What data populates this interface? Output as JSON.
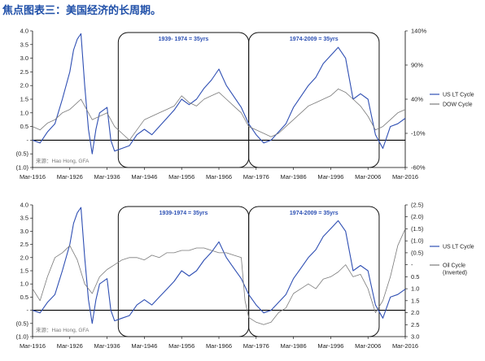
{
  "title": "焦点图表三：美国经济的长周期。",
  "chart_data": [
    {
      "type": "line",
      "x": [
        "Mar-1916",
        "Mar-1926",
        "Mar-1936",
        "Mar-1946",
        "Mar-1956",
        "Mar-1966",
        "Mar-1976",
        "Mar-1986",
        "Mar-1996",
        "Mar-2006",
        "Mar-2016"
      ],
      "y_left_ticks": [
        "4.0",
        "3.5",
        "3.0",
        "2.5",
        "2.0",
        "1.5",
        "1.0",
        "0.5",
        "-",
        "(0.5)",
        "(1.0)"
      ],
      "y_right_ticks": [
        "140%",
        "90%",
        "40%",
        "-10%",
        "-60%"
      ],
      "ylim_left": [
        -1.0,
        4.0
      ],
      "ylim_right": [
        -60,
        140
      ],
      "periods": [
        {
          "label": "1939- 1974 = 35yrs",
          "x_range": [
            1939,
            1974
          ]
        },
        {
          "label": "1974-2009 = 35yrs",
          "x_range": [
            1974,
            2009
          ]
        }
      ],
      "series": [
        {
          "name": "US LT Cycle",
          "color": "#2f4fb3",
          "axis": "left",
          "x": [
            1916,
            1918,
            1920,
            1922,
            1924,
            1926,
            1927,
            1928,
            1929,
            1930,
            1931,
            1932,
            1933,
            1934,
            1936,
            1937,
            1938,
            1940,
            1942,
            1944,
            1946,
            1948,
            1950,
            1952,
            1954,
            1956,
            1958,
            1960,
            1962,
            1964,
            1966,
            1968,
            1970,
            1972,
            1974,
            1976,
            1978,
            1980,
            1982,
            1984,
            1986,
            1988,
            1990,
            1992,
            1994,
            1996,
            1998,
            2000,
            2002,
            2004,
            2006,
            2008,
            2010,
            2012,
            2014,
            2016
          ],
          "values": [
            0.0,
            -0.1,
            0.3,
            0.6,
            1.5,
            2.5,
            3.3,
            3.7,
            3.9,
            2.0,
            0.4,
            -0.5,
            0.4,
            1.0,
            1.2,
            0.0,
            -0.4,
            -0.3,
            -0.2,
            0.2,
            0.4,
            0.2,
            0.5,
            0.8,
            1.1,
            1.5,
            1.3,
            1.5,
            1.9,
            2.2,
            2.6,
            2.0,
            1.6,
            1.2,
            0.6,
            0.2,
            -0.1,
            0.0,
            0.3,
            0.6,
            1.2,
            1.6,
            2.0,
            2.3,
            2.8,
            3.1,
            3.4,
            3.0,
            1.5,
            1.7,
            1.5,
            0.2,
            -0.3,
            0.5,
            0.6,
            0.8
          ]
        },
        {
          "name": "DOW Cycle",
          "color": "#7a7a7a",
          "axis": "right",
          "x": [
            1916,
            1918,
            1920,
            1922,
            1924,
            1926,
            1928,
            1929,
            1930,
            1932,
            1934,
            1936,
            1937,
            1938,
            1940,
            1942,
            1944,
            1946,
            1948,
            1950,
            1952,
            1954,
            1956,
            1958,
            1960,
            1962,
            1964,
            1966,
            1968,
            1970,
            1972,
            1974,
            1976,
            1978,
            1980,
            1982,
            1984,
            1986,
            1988,
            1990,
            1992,
            1994,
            1996,
            1998,
            2000,
            2002,
            2004,
            2006,
            2008,
            2010,
            2012,
            2014,
            2016
          ],
          "values": [
            0,
            -5,
            5,
            10,
            20,
            25,
            35,
            40,
            30,
            10,
            15,
            20,
            10,
            0,
            -10,
            -20,
            -5,
            10,
            15,
            20,
            25,
            30,
            45,
            35,
            30,
            40,
            45,
            50,
            40,
            30,
            20,
            0,
            -5,
            -10,
            -15,
            -10,
            0,
            10,
            20,
            30,
            35,
            40,
            45,
            55,
            50,
            40,
            30,
            15,
            -5,
            0,
            10,
            20,
            25
          ]
        }
      ],
      "watermark": "来源：Hao Hong, GFA"
    },
    {
      "type": "line",
      "x": [
        "Mar-1916",
        "Mar-1926",
        "Mar-1936",
        "Mar-1946",
        "Mar-1956",
        "Mar-1966",
        "Mar-1976",
        "Mar-1986",
        "Mar-1996",
        "Mar-2006",
        "Mar-2016"
      ],
      "y_left_ticks": [
        "4.0",
        "3.5",
        "3.0",
        "2.5",
        "2.0",
        "1.5",
        "1.0",
        "0.5",
        "-",
        "(0.5)",
        "(1.0)"
      ],
      "y_right_ticks": [
        "(2.5)",
        "(2.0)",
        "(1.5)",
        "(1.0)",
        "(0.5)",
        "-",
        "0.5",
        "1.0",
        "1.5",
        "2.0",
        "2.5",
        "3.0"
      ],
      "ylim_left": [
        -1.0,
        4.0
      ],
      "ylim_right": [
        3.0,
        -2.5
      ],
      "periods": [
        {
          "label": "1939-1974 = 35yrs",
          "x_range": [
            1939,
            1974
          ]
        },
        {
          "label": "1974-2009 = 35yrs",
          "x_range": [
            1974,
            2009
          ]
        }
      ],
      "series": [
        {
          "name": "US LT Cycle",
          "color": "#2f4fb3",
          "axis": "left",
          "x": [
            1916,
            1918,
            1920,
            1922,
            1924,
            1926,
            1927,
            1928,
            1929,
            1930,
            1931,
            1932,
            1933,
            1934,
            1936,
            1937,
            1938,
            1940,
            1942,
            1944,
            1946,
            1948,
            1950,
            1952,
            1954,
            1956,
            1958,
            1960,
            1962,
            1964,
            1966,
            1968,
            1970,
            1972,
            1974,
            1976,
            1978,
            1980,
            1982,
            1984,
            1986,
            1988,
            1990,
            1992,
            1994,
            1996,
            1998,
            2000,
            2002,
            2004,
            2006,
            2008,
            2010,
            2012,
            2014,
            2016
          ],
          "values": [
            0.0,
            -0.1,
            0.3,
            0.6,
            1.5,
            2.5,
            3.3,
            3.7,
            3.9,
            2.0,
            0.4,
            -0.5,
            0.4,
            1.0,
            1.2,
            0.0,
            -0.4,
            -0.3,
            -0.2,
            0.2,
            0.4,
            0.2,
            0.5,
            0.8,
            1.1,
            1.5,
            1.3,
            1.5,
            1.9,
            2.2,
            2.6,
            2.0,
            1.6,
            1.2,
            0.6,
            0.2,
            -0.1,
            0.0,
            0.3,
            0.6,
            1.2,
            1.6,
            2.0,
            2.3,
            2.8,
            3.1,
            3.4,
            3.0,
            1.5,
            1.7,
            1.5,
            0.2,
            -0.3,
            0.5,
            0.6,
            0.8
          ]
        },
        {
          "name": "Oil Cycle (Inverted)",
          "color": "#7a7a7a",
          "axis": "right",
          "x": [
            1916,
            1918,
            1920,
            1922,
            1924,
            1926,
            1928,
            1930,
            1932,
            1934,
            1936,
            1938,
            1940,
            1942,
            1944,
            1946,
            1948,
            1950,
            1952,
            1954,
            1956,
            1958,
            1960,
            1962,
            1964,
            1966,
            1968,
            1970,
            1972,
            1973,
            1974,
            1976,
            1978,
            1980,
            1982,
            1984,
            1986,
            1988,
            1990,
            1992,
            1994,
            1996,
            1998,
            2000,
            2002,
            2004,
            2006,
            2008,
            2010,
            2012,
            2014,
            2016
          ],
          "values": [
            1.0,
            1.5,
            0.5,
            -0.3,
            -0.5,
            -0.8,
            -0.2,
            0.8,
            1.2,
            0.5,
            0.2,
            0.0,
            -0.2,
            -0.3,
            -0.3,
            -0.2,
            -0.4,
            -0.3,
            -0.5,
            -0.5,
            -0.6,
            -0.6,
            -0.7,
            -0.7,
            -0.6,
            -0.5,
            -0.5,
            -0.4,
            -0.3,
            1.5,
            2.2,
            2.4,
            2.5,
            2.4,
            2.0,
            1.8,
            1.2,
            1.0,
            0.8,
            1.0,
            0.6,
            0.5,
            0.3,
            0.0,
            0.5,
            0.4,
            1.0,
            2.0,
            1.5,
            0.5,
            -0.8,
            -1.5
          ]
        }
      ],
      "watermark": "来源：Hao Hong, GFA"
    }
  ]
}
